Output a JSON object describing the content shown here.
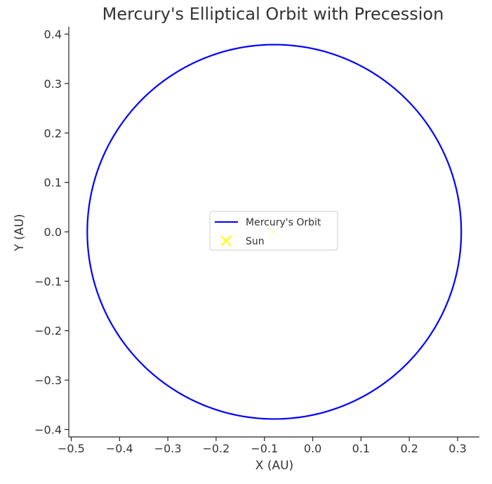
{
  "chart_data": {
    "type": "line",
    "title": "Mercury's Elliptical Orbit with Precession",
    "xlabel": "X (AU)",
    "ylabel": "Y (AU)",
    "xlim": [
      -0.505,
      0.345
    ],
    "ylim": [
      -0.415,
      0.415
    ],
    "xticks": [
      -0.5,
      -0.4,
      -0.3,
      -0.2,
      -0.1,
      0.0,
      0.1,
      0.2,
      0.3
    ],
    "xtick_labels": [
      "−0.5",
      "−0.4",
      "−0.3",
      "−0.2",
      "−0.1",
      "0.0",
      "0.1",
      "0.2",
      "0.3"
    ],
    "yticks": [
      0.4,
      0.3,
      0.2,
      0.1,
      0.0,
      -0.1,
      -0.2,
      -0.3,
      -0.4
    ],
    "ytick_labels": [
      "0.4",
      "0.3",
      "0.2",
      "0.1",
      "0.0",
      "−0.1",
      "−0.2",
      "−0.3",
      "−0.4"
    ],
    "grid": false,
    "legend_position": "center",
    "series": [
      {
        "name": "Mercury's Orbit",
        "kind": "ellipse",
        "color": "#0000ff",
        "center": [
          -0.0796,
          0.0
        ],
        "semi_major_x": 0.3871,
        "semi_minor_y": 0.3787
      },
      {
        "name": "Sun",
        "kind": "scatter",
        "marker": "x",
        "color": "#ffff00",
        "points": [
          [
            -0.0796,
            0.0
          ]
        ]
      }
    ]
  }
}
